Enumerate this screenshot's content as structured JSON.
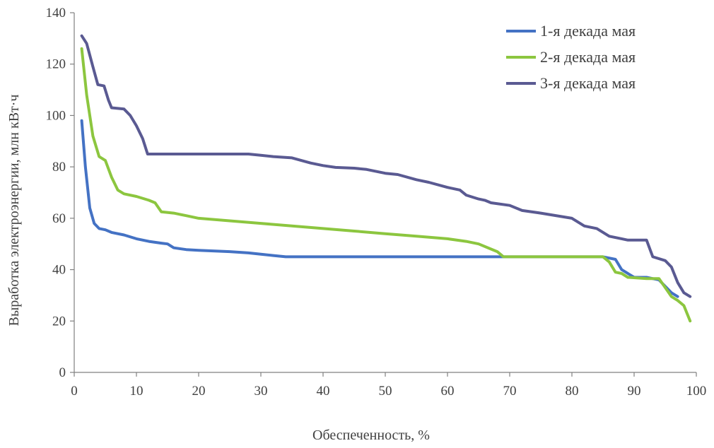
{
  "chart_data": {
    "type": "line",
    "title": "",
    "xlabel": "Обеспеченность, %",
    "ylabel": "Выработка электроэнергии, млн кВт·ч",
    "xlim": [
      0,
      100
    ],
    "ylim": [
      0,
      140
    ],
    "xticks": [
      0,
      10,
      20,
      30,
      40,
      50,
      60,
      70,
      80,
      90,
      100
    ],
    "yticks": [
      0,
      20,
      40,
      60,
      80,
      100,
      120,
      140
    ],
    "grid": false,
    "legend_position": "top-right",
    "series": [
      {
        "name": "1-я декада мая",
        "color": "#4472c4",
        "points": [
          [
            1.2,
            98
          ],
          [
            1.8,
            80
          ],
          [
            2.5,
            64
          ],
          [
            3.2,
            58
          ],
          [
            4,
            56
          ],
          [
            5,
            55.5
          ],
          [
            6,
            54.5
          ],
          [
            8,
            53.5
          ],
          [
            10,
            52
          ],
          [
            12,
            51
          ],
          [
            14,
            50.3
          ],
          [
            15,
            50
          ],
          [
            16,
            48.5
          ],
          [
            18,
            47.8
          ],
          [
            20,
            47.5
          ],
          [
            25,
            47
          ],
          [
            28,
            46.5
          ],
          [
            30,
            46
          ],
          [
            32,
            45.5
          ],
          [
            34,
            45
          ],
          [
            40,
            45
          ],
          [
            50,
            45
          ],
          [
            60,
            45
          ],
          [
            68,
            45
          ],
          [
            70,
            45
          ],
          [
            80,
            45
          ],
          [
            85,
            45
          ],
          [
            87,
            44
          ],
          [
            88,
            40
          ],
          [
            90,
            37
          ],
          [
            92,
            37
          ],
          [
            94,
            36
          ],
          [
            96,
            31
          ],
          [
            97,
            29.5
          ]
        ]
      },
      {
        "name": "2-я декада мая",
        "color": "#8cc63f",
        "points": [
          [
            1.2,
            126
          ],
          [
            2,
            108
          ],
          [
            3,
            92
          ],
          [
            4,
            84
          ],
          [
            5,
            82.5
          ],
          [
            6,
            76
          ],
          [
            7,
            71
          ],
          [
            8,
            69.5
          ],
          [
            10,
            68.5
          ],
          [
            12,
            67
          ],
          [
            13,
            66
          ],
          [
            14,
            62.5
          ],
          [
            16,
            62
          ],
          [
            18,
            61
          ],
          [
            20,
            60
          ],
          [
            25,
            59
          ],
          [
            30,
            58
          ],
          [
            35,
            57
          ],
          [
            40,
            56
          ],
          [
            45,
            55
          ],
          [
            50,
            54
          ],
          [
            55,
            53
          ],
          [
            60,
            52
          ],
          [
            63,
            51
          ],
          [
            65,
            50
          ],
          [
            67,
            48
          ],
          [
            68,
            47
          ],
          [
            69,
            45
          ],
          [
            70,
            45
          ],
          [
            80,
            45
          ],
          [
            85,
            45
          ],
          [
            86,
            43
          ],
          [
            87,
            39
          ],
          [
            88,
            38.5
          ],
          [
            89,
            37
          ],
          [
            92,
            36.5
          ],
          [
            94,
            36.5
          ],
          [
            95,
            33
          ],
          [
            96,
            29.5
          ],
          [
            97,
            28
          ],
          [
            98,
            26
          ],
          [
            99,
            20
          ]
        ]
      },
      {
        "name": "3-я декада мая",
        "color": "#5a5a92",
        "points": [
          [
            1.2,
            131
          ],
          [
            2,
            128
          ],
          [
            3,
            119
          ],
          [
            3.8,
            112
          ],
          [
            4.8,
            111.5
          ],
          [
            5.5,
            106
          ],
          [
            6,
            103
          ],
          [
            8,
            102.5
          ],
          [
            9,
            100
          ],
          [
            10,
            96
          ],
          [
            11,
            91
          ],
          [
            11.8,
            85
          ],
          [
            12.5,
            85
          ],
          [
            15,
            85
          ],
          [
            20,
            85
          ],
          [
            25,
            85
          ],
          [
            28,
            85
          ],
          [
            30,
            84.5
          ],
          [
            32,
            84
          ],
          [
            35,
            83.5
          ],
          [
            38,
            81.5
          ],
          [
            40,
            80.5
          ],
          [
            42,
            79.8
          ],
          [
            45,
            79.5
          ],
          [
            47,
            79
          ],
          [
            50,
            77.5
          ],
          [
            52,
            77
          ],
          [
            55,
            75
          ],
          [
            57,
            74
          ],
          [
            60,
            72
          ],
          [
            62,
            71
          ],
          [
            63,
            69
          ],
          [
            65,
            67.5
          ],
          [
            66,
            67
          ],
          [
            67,
            66
          ],
          [
            70,
            65
          ],
          [
            72,
            63
          ],
          [
            75,
            62
          ],
          [
            80,
            60
          ],
          [
            82,
            57
          ],
          [
            84,
            56
          ],
          [
            86,
            53
          ],
          [
            88,
            52
          ],
          [
            89,
            51.5
          ],
          [
            92,
            51.5
          ],
          [
            93,
            45
          ],
          [
            95,
            43.5
          ],
          [
            96,
            41
          ],
          [
            97,
            35
          ],
          [
            98,
            31
          ],
          [
            99,
            29.5
          ]
        ]
      }
    ]
  }
}
